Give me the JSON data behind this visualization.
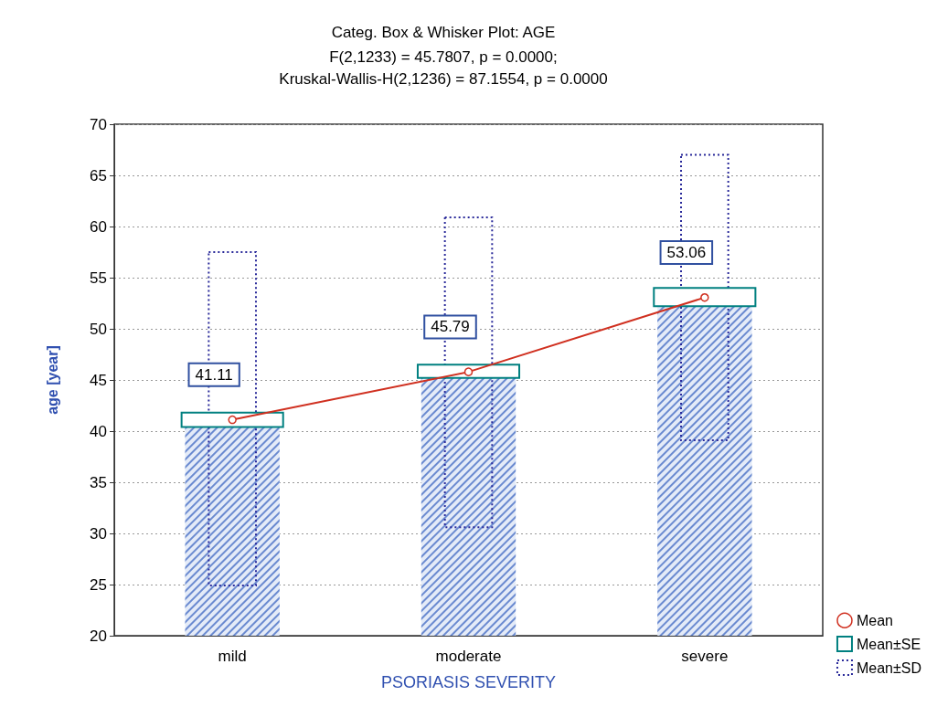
{
  "chart_data": {
    "type": "bar",
    "title": "Categ. Box & Whisker Plot: AGE",
    "subtitle": "F(2,1233) = 45.7807, p = 0.0000;\nKruskal-Wallis-H(2,1236) = 87.1554, p = 0.0000",
    "xlabel": "PSORIASIS SEVERITY",
    "ylabel": "age [year]",
    "categories": [
      "mild",
      "moderate",
      "severe"
    ],
    "series": [
      {
        "color": "#6a8ad0",
        "values": [
          41.1,
          45.8,
          53.1
        ]
      },
      {
        "type": "line",
        "name": "Mean",
        "color": "#d03020",
        "values": [
          41.11,
          45.79,
          53.06
        ],
        "marker": "circle",
        "data_labels": true
      },
      {
        "type": "bar",
        "name": "Mean±SE",
        "color": "#008080",
        "base": [
          40.4,
          45.2,
          52.2
        ],
        "values": [
          1.4,
          1.3,
          1.8
        ]
      },
      {
        "type": "bar",
        "name": "Mean±SD",
        "color": "#2a2a9a",
        "base": [
          24.9,
          30.6,
          39.1
        ],
        "values": [
          32.6,
          30.3,
          27.9
        ],
        "line_style": "dotted"
      }
    ],
    "ylim": [
      20,
      70
    ],
    "yticks": [
      20,
      25,
      30,
      35,
      40,
      45,
      50,
      55,
      60,
      65,
      70
    ],
    "grid": "y",
    "legend": "bottom right"
  }
}
